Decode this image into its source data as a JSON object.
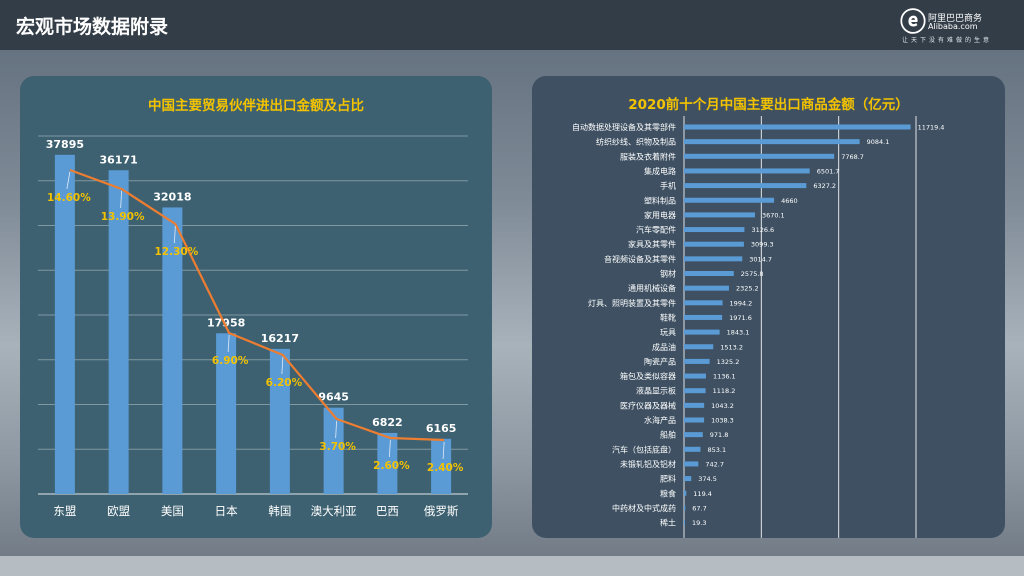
{
  "header": {
    "title": "宏观市场数据附录"
  },
  "logo": {
    "icon": "alibaba-logo-icon",
    "cn": "阿里巴巴商务",
    "en": "Alibaba.com",
    "tagline": "让天下没有难做的生意"
  },
  "colors": {
    "bar": "#5b9bd5",
    "line": "#ed7d31",
    "title": "#f3c200",
    "pct": "#f3c200",
    "label": "#ffffff"
  },
  "chart_data": [
    {
      "type": "bar",
      "title": "中国主要贸易伙伴进出口金额及占比",
      "categories": [
        "东盟",
        "欧盟",
        "美国",
        "日本",
        "韩国",
        "澳大利亚",
        "巴西",
        "俄罗斯"
      ],
      "series": [
        {
          "name": "进出口金额",
          "type": "bar",
          "values": [
            37895,
            36171,
            32018,
            17958,
            16217,
            9645,
            6822,
            6165
          ]
        },
        {
          "name": "占比",
          "type": "line",
          "values": [
            "14.60%",
            "13.90%",
            "12.30%",
            "6.90%",
            "6.20%",
            "3.70%",
            "2.60%",
            "2.40%"
          ]
        }
      ],
      "ylim": [
        0,
        40000
      ],
      "grid": true
    },
    {
      "type": "bar",
      "orientation": "horizontal",
      "title": "2020前十个月中国主要出口商品金额（亿元）",
      "categories": [
        "自动数据处理设备及其零部件",
        "纺织纱线、织物及制品",
        "服装及衣着附件",
        "集成电路",
        "手机",
        "塑料制品",
        "家用电器",
        "汽车零配件",
        "家具及其零件",
        "音视频设备及其零件",
        "钢材",
        "通用机械设备",
        "灯具、照明装置及其零件",
        "鞋靴",
        "玩具",
        "成品油",
        "陶瓷产品",
        "箱包及类似容器",
        "液晶显示板",
        "医疗仪器及器械",
        "水海产品",
        "船舶",
        "汽车（包括底盘）",
        "未锻轧铝及铝材",
        "肥料",
        "粮食",
        "中药材及中式成药",
        "稀土"
      ],
      "values": [
        11719.4,
        9084.1,
        7768.7,
        6501.7,
        6327.2,
        4660,
        3670.1,
        3126.6,
        3099.3,
        3014.7,
        2575.8,
        2325.2,
        1994.2,
        1971.6,
        1843.1,
        1513.2,
        1325.2,
        1136.1,
        1118.2,
        1043.2,
        1038.3,
        971.8,
        853.1,
        742.7,
        374.5,
        119.4,
        67.7,
        19.3
      ],
      "value_labels": [
        "11719.4",
        "9084.1",
        "7768.7",
        "6501.7",
        "6327.2",
        "4660",
        "3670.1",
        "3126.6",
        "3099.3",
        "3014.7",
        "2575.8",
        "2325.2",
        "1994.2",
        "1971.6",
        "1843.1",
        "1513.2",
        "1325.2",
        "1136.1",
        "1118.2",
        "1043.2",
        "1038.3",
        "971.8",
        "853.1",
        "742.7",
        "374.5",
        "119.4",
        "67.7",
        "19.3"
      ],
      "xlim": [
        0,
        12000
      ],
      "grid": true
    }
  ]
}
